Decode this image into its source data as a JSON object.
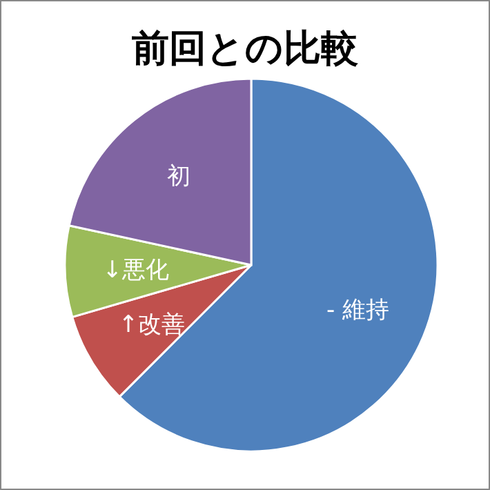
{
  "chart_data": {
    "type": "pie",
    "title": "前回との比較",
    "categories": [
      "- 維持",
      "↑改善",
      "↓悪化",
      "初"
    ],
    "values": [
      62.5,
      8.0,
      7.9,
      21.6
    ],
    "colors": [
      "#4f81bd",
      "#c0504d",
      "#9bbb59",
      "#8064a2"
    ]
  }
}
